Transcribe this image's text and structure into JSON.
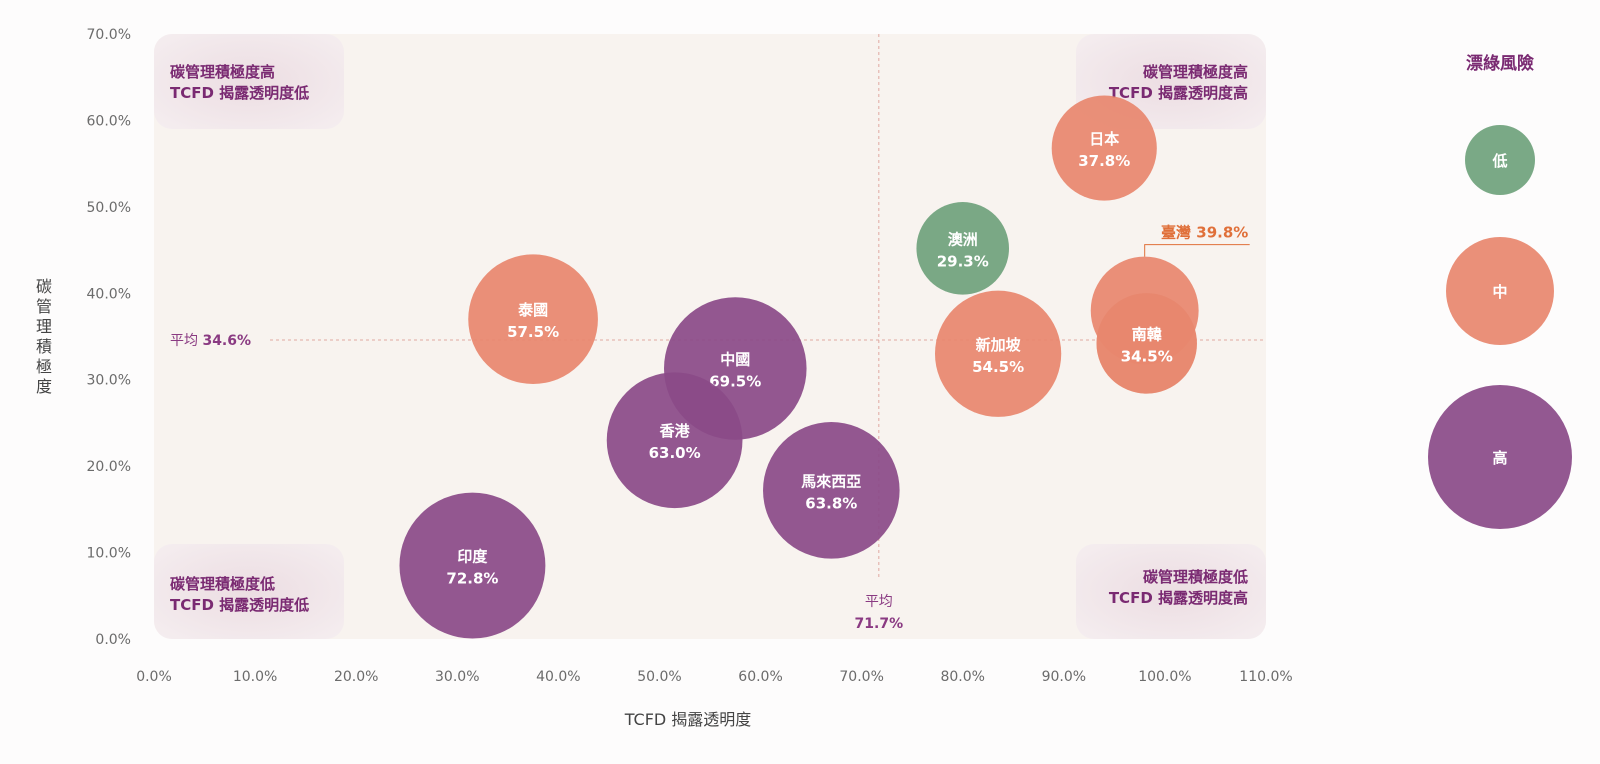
{
  "chart_data": {
    "type": "scatter",
    "xlabel": "TCFD 揭露透明度",
    "ylabel": "碳管理積極度",
    "xlim": [
      0,
      110
    ],
    "ylim": [
      0,
      70
    ],
    "x_ticks": [
      "0.0%",
      "10.0%",
      "20.0%",
      "30.0%",
      "40.0%",
      "50.0%",
      "60.0%",
      "70.0%",
      "80.0%",
      "90.0%",
      "100.0%",
      "110.0%"
    ],
    "y_ticks": [
      "0.0%",
      "10.0%",
      "20.0%",
      "30.0%",
      "40.0%",
      "50.0%",
      "60.0%",
      "70.0%"
    ],
    "x_average": {
      "value": 71.7,
      "label": "平均",
      "value_label": "71.7%"
    },
    "y_average": {
      "value": 34.6,
      "label": "平均",
      "value_label": "34.6%"
    },
    "quadrants": {
      "top_left": [
        "碳管理積極度高",
        "TCFD 揭露透明度低"
      ],
      "top_right": [
        "碳管理積極度高",
        "TCFD 揭露透明度高"
      ],
      "bottom_left": [
        "碳管理積極度低",
        "TCFD 揭露透明度低"
      ],
      "bottom_right": [
        "碳管理積極度低",
        "TCFD 揭露透明度高"
      ]
    },
    "risk_colors": {
      "low": "#6fa27c",
      "medium": "#e8876e",
      "high": "#8a4a88"
    },
    "points": [
      {
        "name": "日本",
        "x": 94.0,
        "y": 56.8,
        "value": "37.8%",
        "risk": "medium"
      },
      {
        "name": "澳洲",
        "x": 80.0,
        "y": 45.2,
        "value": "29.3%",
        "risk": "low"
      },
      {
        "name": "臺灣",
        "x": 98.0,
        "y": 38.0,
        "value": "39.8%",
        "risk": "medium",
        "callout": "臺灣 39.8%"
      },
      {
        "name": "南韓",
        "x": 98.2,
        "y": 34.2,
        "value": "34.5%",
        "risk": "medium"
      },
      {
        "name": "新加坡",
        "x": 83.5,
        "y": 33.0,
        "value": "54.5%",
        "risk": "medium"
      },
      {
        "name": "泰國",
        "x": 37.5,
        "y": 37.0,
        "value": "57.5%",
        "risk": "medium"
      },
      {
        "name": "中國",
        "x": 57.5,
        "y": 31.3,
        "value": "69.5%",
        "risk": "high"
      },
      {
        "name": "香港",
        "x": 51.5,
        "y": 23.0,
        "value": "63.0%",
        "risk": "high"
      },
      {
        "name": "馬來西亞",
        "x": 67.0,
        "y": 17.2,
        "value": "63.8%",
        "risk": "high"
      },
      {
        "name": "印度",
        "x": 31.5,
        "y": 8.5,
        "value": "72.8%",
        "risk": "high"
      }
    ]
  },
  "legend": {
    "title": "漂綠風險",
    "items": [
      {
        "label": "低",
        "risk": "low"
      },
      {
        "label": "中",
        "risk": "medium"
      },
      {
        "label": "高",
        "risk": "high"
      }
    ]
  }
}
